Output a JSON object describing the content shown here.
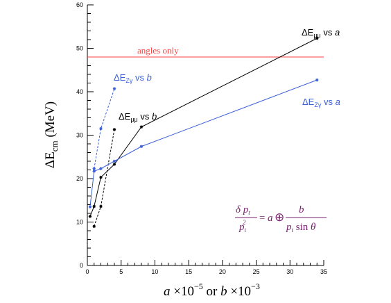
{
  "chart_data": {
    "type": "line",
    "x_axis": {
      "range": [
        0,
        35
      ],
      "ticks": [
        0,
        5,
        10,
        15,
        20,
        25,
        30,
        35
      ],
      "label": {
        "a": "a",
        "times1": "×10",
        "exp1": "−5",
        "or": "or",
        "b": "b",
        "times2": "×10",
        "exp2": "−3"
      }
    },
    "y_axis": {
      "range": [
        0,
        60
      ],
      "ticks": [
        0,
        10,
        20,
        30,
        40,
        50,
        60
      ],
      "label": {
        "prefix": "ΔE",
        "sub": "cm",
        "unit": "(MeV)"
      }
    },
    "grid": false,
    "reference_line": {
      "y": 48,
      "color": "#ff4040",
      "label": "angles only"
    },
    "series": [
      {
        "key": "emumu_vs_a",
        "color": "#000000",
        "dashed": false,
        "label": {
          "delta": "ΔE",
          "sub": "μμ",
          "rest": " vs ",
          "var": "a"
        },
        "x": [
          0.4,
          1,
          2,
          4,
          8,
          34
        ],
        "y": [
          11.3,
          13.6,
          20.3,
          23.3,
          31.9,
          52.3
        ]
      },
      {
        "key": "emumu_vs_b",
        "color": "#000000",
        "dashed": true,
        "label": {
          "delta": "ΔE",
          "sub": "μμ",
          "rest": " vs ",
          "var": "b"
        },
        "x": [
          1,
          2,
          4
        ],
        "y": [
          9.0,
          13.6,
          31.3
        ]
      },
      {
        "key": "ezg_vs_a",
        "color": "#3a5fd8",
        "dashed": false,
        "label": {
          "delta": "ΔE",
          "sub": "Zγ",
          "rest": " vs ",
          "var": "a"
        },
        "x": [
          0.4,
          1,
          2,
          4,
          8,
          34
        ],
        "y": [
          13.5,
          21.7,
          22.3,
          24.0,
          27.4,
          42.7
        ]
      },
      {
        "key": "ezg_vs_b",
        "color": "#3a5fd8",
        "dashed": true,
        "label": {
          "delta": "ΔE",
          "sub": "Zγ",
          "rest": " vs ",
          "var": "b"
        },
        "x": [
          1,
          2,
          4
        ],
        "y": [
          22.3,
          31.5,
          40.7
        ]
      }
    ],
    "formula": {
      "color": "#7a1f6e",
      "lhs_num": "δ p",
      "lhs_num_sub": "t",
      "lhs_den": "p",
      "lhs_den_sub": "t",
      "lhs_den_sup": "2",
      "eq": "=",
      "a": "a",
      "oplus": "⊕",
      "rhs_num": "b",
      "rhs_den_p": "p",
      "rhs_den_sub": "t",
      "rhs_den_sin": "sin",
      "rhs_den_theta": "θ"
    }
  }
}
